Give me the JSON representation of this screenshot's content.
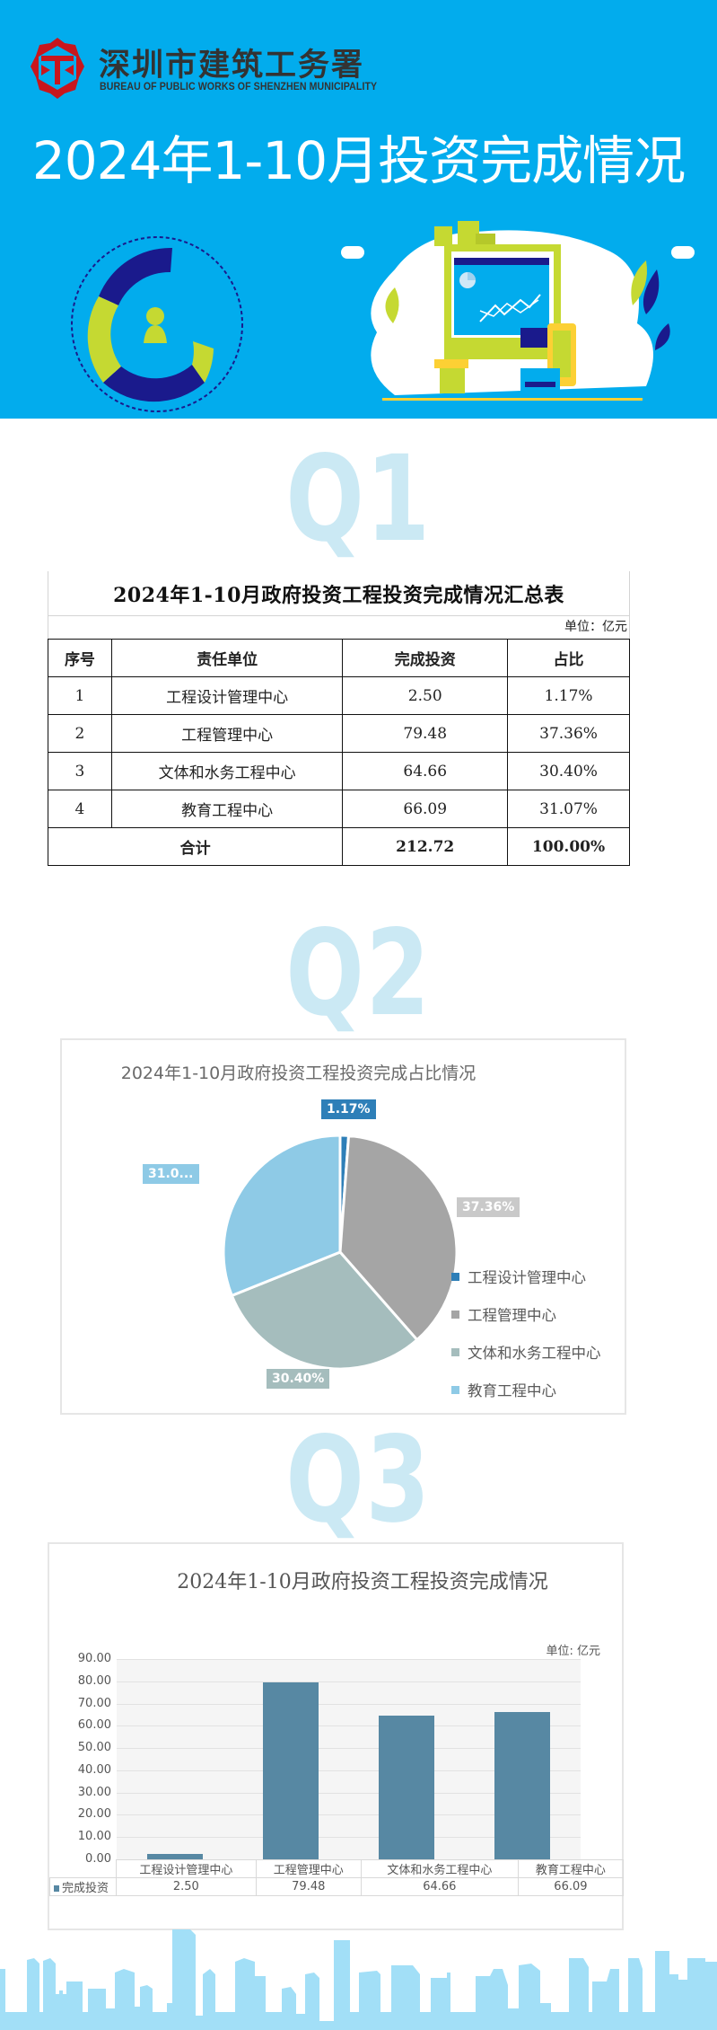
{
  "header": {
    "org_name": "深圳市建筑工务署",
    "org_name_en": "BUREAU OF PUBLIC WORKS OF SHENZHEN MUNICIPALITY",
    "main_title": "2024年1-10月投资完成情况",
    "colors": {
      "banner": "#02aced",
      "logo_red": "#c8161d",
      "accent_green": "#c5d932",
      "accent_navy": "#1a1a8c"
    }
  },
  "sections": {
    "q1": "Q1",
    "q2": "Q2",
    "q3": "Q3"
  },
  "summary_table": {
    "title": "2024年1-10月政府投资工程投资完成情况汇总表",
    "unit": "单位：亿元",
    "headers": [
      "序号",
      "责任单位",
      "完成投资",
      "占比"
    ],
    "rows": [
      {
        "idx": "1",
        "unit": "工程设计管理中心",
        "amount": "2.50",
        "pct": "1.17%"
      },
      {
        "idx": "2",
        "unit": "工程管理中心",
        "amount": "79.48",
        "pct": "37.36%"
      },
      {
        "idx": "3",
        "unit": "文体和水务工程中心",
        "amount": "64.66",
        "pct": "30.40%"
      },
      {
        "idx": "4",
        "unit": "教育工程中心",
        "amount": "66.09",
        "pct": "31.07%"
      }
    ],
    "total": {
      "label": "合计",
      "amount": "212.72",
      "pct": "100.00%"
    }
  },
  "chart_data": [
    {
      "type": "pie",
      "title": "2024年1-10月政府投资工程投资完成占比情况",
      "categories": [
        "工程设计管理中心",
        "工程管理中心",
        "文体和水务工程中心",
        "教育工程中心"
      ],
      "values": [
        1.17,
        37.36,
        30.4,
        31.07
      ],
      "data_labels": [
        "1.17%",
        "37.36%",
        "30.40%",
        "31.0..."
      ],
      "colors": [
        "#2e7fb8",
        "#a5a5a5",
        "#a5bdbd",
        "#8ecae6"
      ],
      "legend_position": "right"
    },
    {
      "type": "bar",
      "title": "2024年1-10月政府投资工程投资完成情况",
      "unit_label": "单位: 亿元",
      "categories": [
        "工程设计管理中心",
        "工程管理中心",
        "文体和水务工程中心",
        "教育工程中心"
      ],
      "series": [
        {
          "name": "完成投资",
          "values": [
            2.5,
            79.48,
            64.66,
            66.09
          ],
          "color": "#5788a3"
        }
      ],
      "data_table": [
        "2.50",
        "79.48",
        "64.66",
        "66.09"
      ],
      "yticks": [
        "90.00",
        "80.00",
        "70.00",
        "60.00",
        "50.00",
        "40.00",
        "30.00",
        "20.00",
        "10.00",
        "0.00"
      ],
      "ylim": [
        0,
        90
      ],
      "grid": true,
      "xlabel": "",
      "ylabel": ""
    }
  ]
}
